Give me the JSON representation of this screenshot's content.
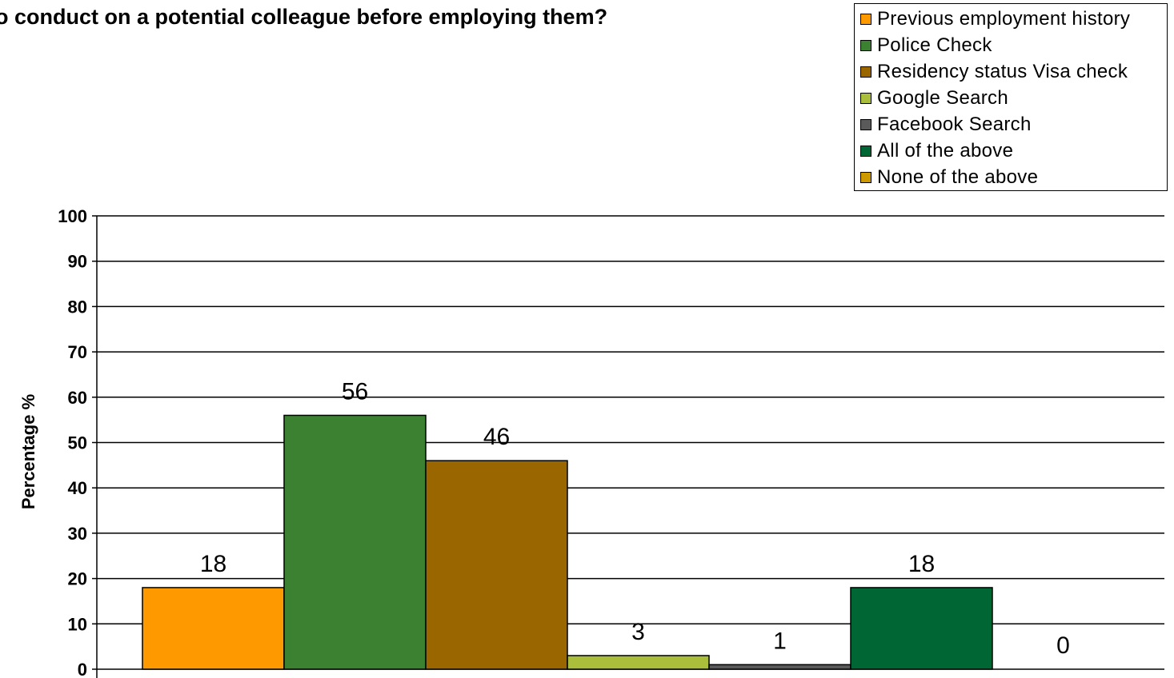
{
  "chart_data": {
    "type": "bar",
    "title": "o conduct on a potential colleague before employing them?",
    "ylabel": "Percentage %",
    "xlabel": "",
    "ylim": [
      0,
      100
    ],
    "yticks": [
      "0",
      "10",
      "20",
      "30",
      "40",
      "50",
      "60",
      "70",
      "80",
      "90",
      "100"
    ],
    "grid": true,
    "legend_position": "top-right",
    "series": [
      {
        "name": "Previous employment history",
        "value": 18,
        "label": "18",
        "color": "#FF9900"
      },
      {
        "name": "Police Check",
        "value": 56,
        "label": "56",
        "color": "#3C8032"
      },
      {
        "name": "Residency status Visa check",
        "value": 46,
        "label": "46",
        "color": "#996600"
      },
      {
        "name": "Google Search",
        "value": 3,
        "label": "3",
        "color": "#AABE3C"
      },
      {
        "name": "Facebook Search",
        "value": 1,
        "label": "1",
        "color": "#5A5A5A"
      },
      {
        "name": "All of the above",
        "value": 18,
        "label": "18",
        "color": "#006633"
      },
      {
        "name": "None of the above",
        "value": 0,
        "label": "0",
        "color": "#CC9900"
      }
    ]
  }
}
